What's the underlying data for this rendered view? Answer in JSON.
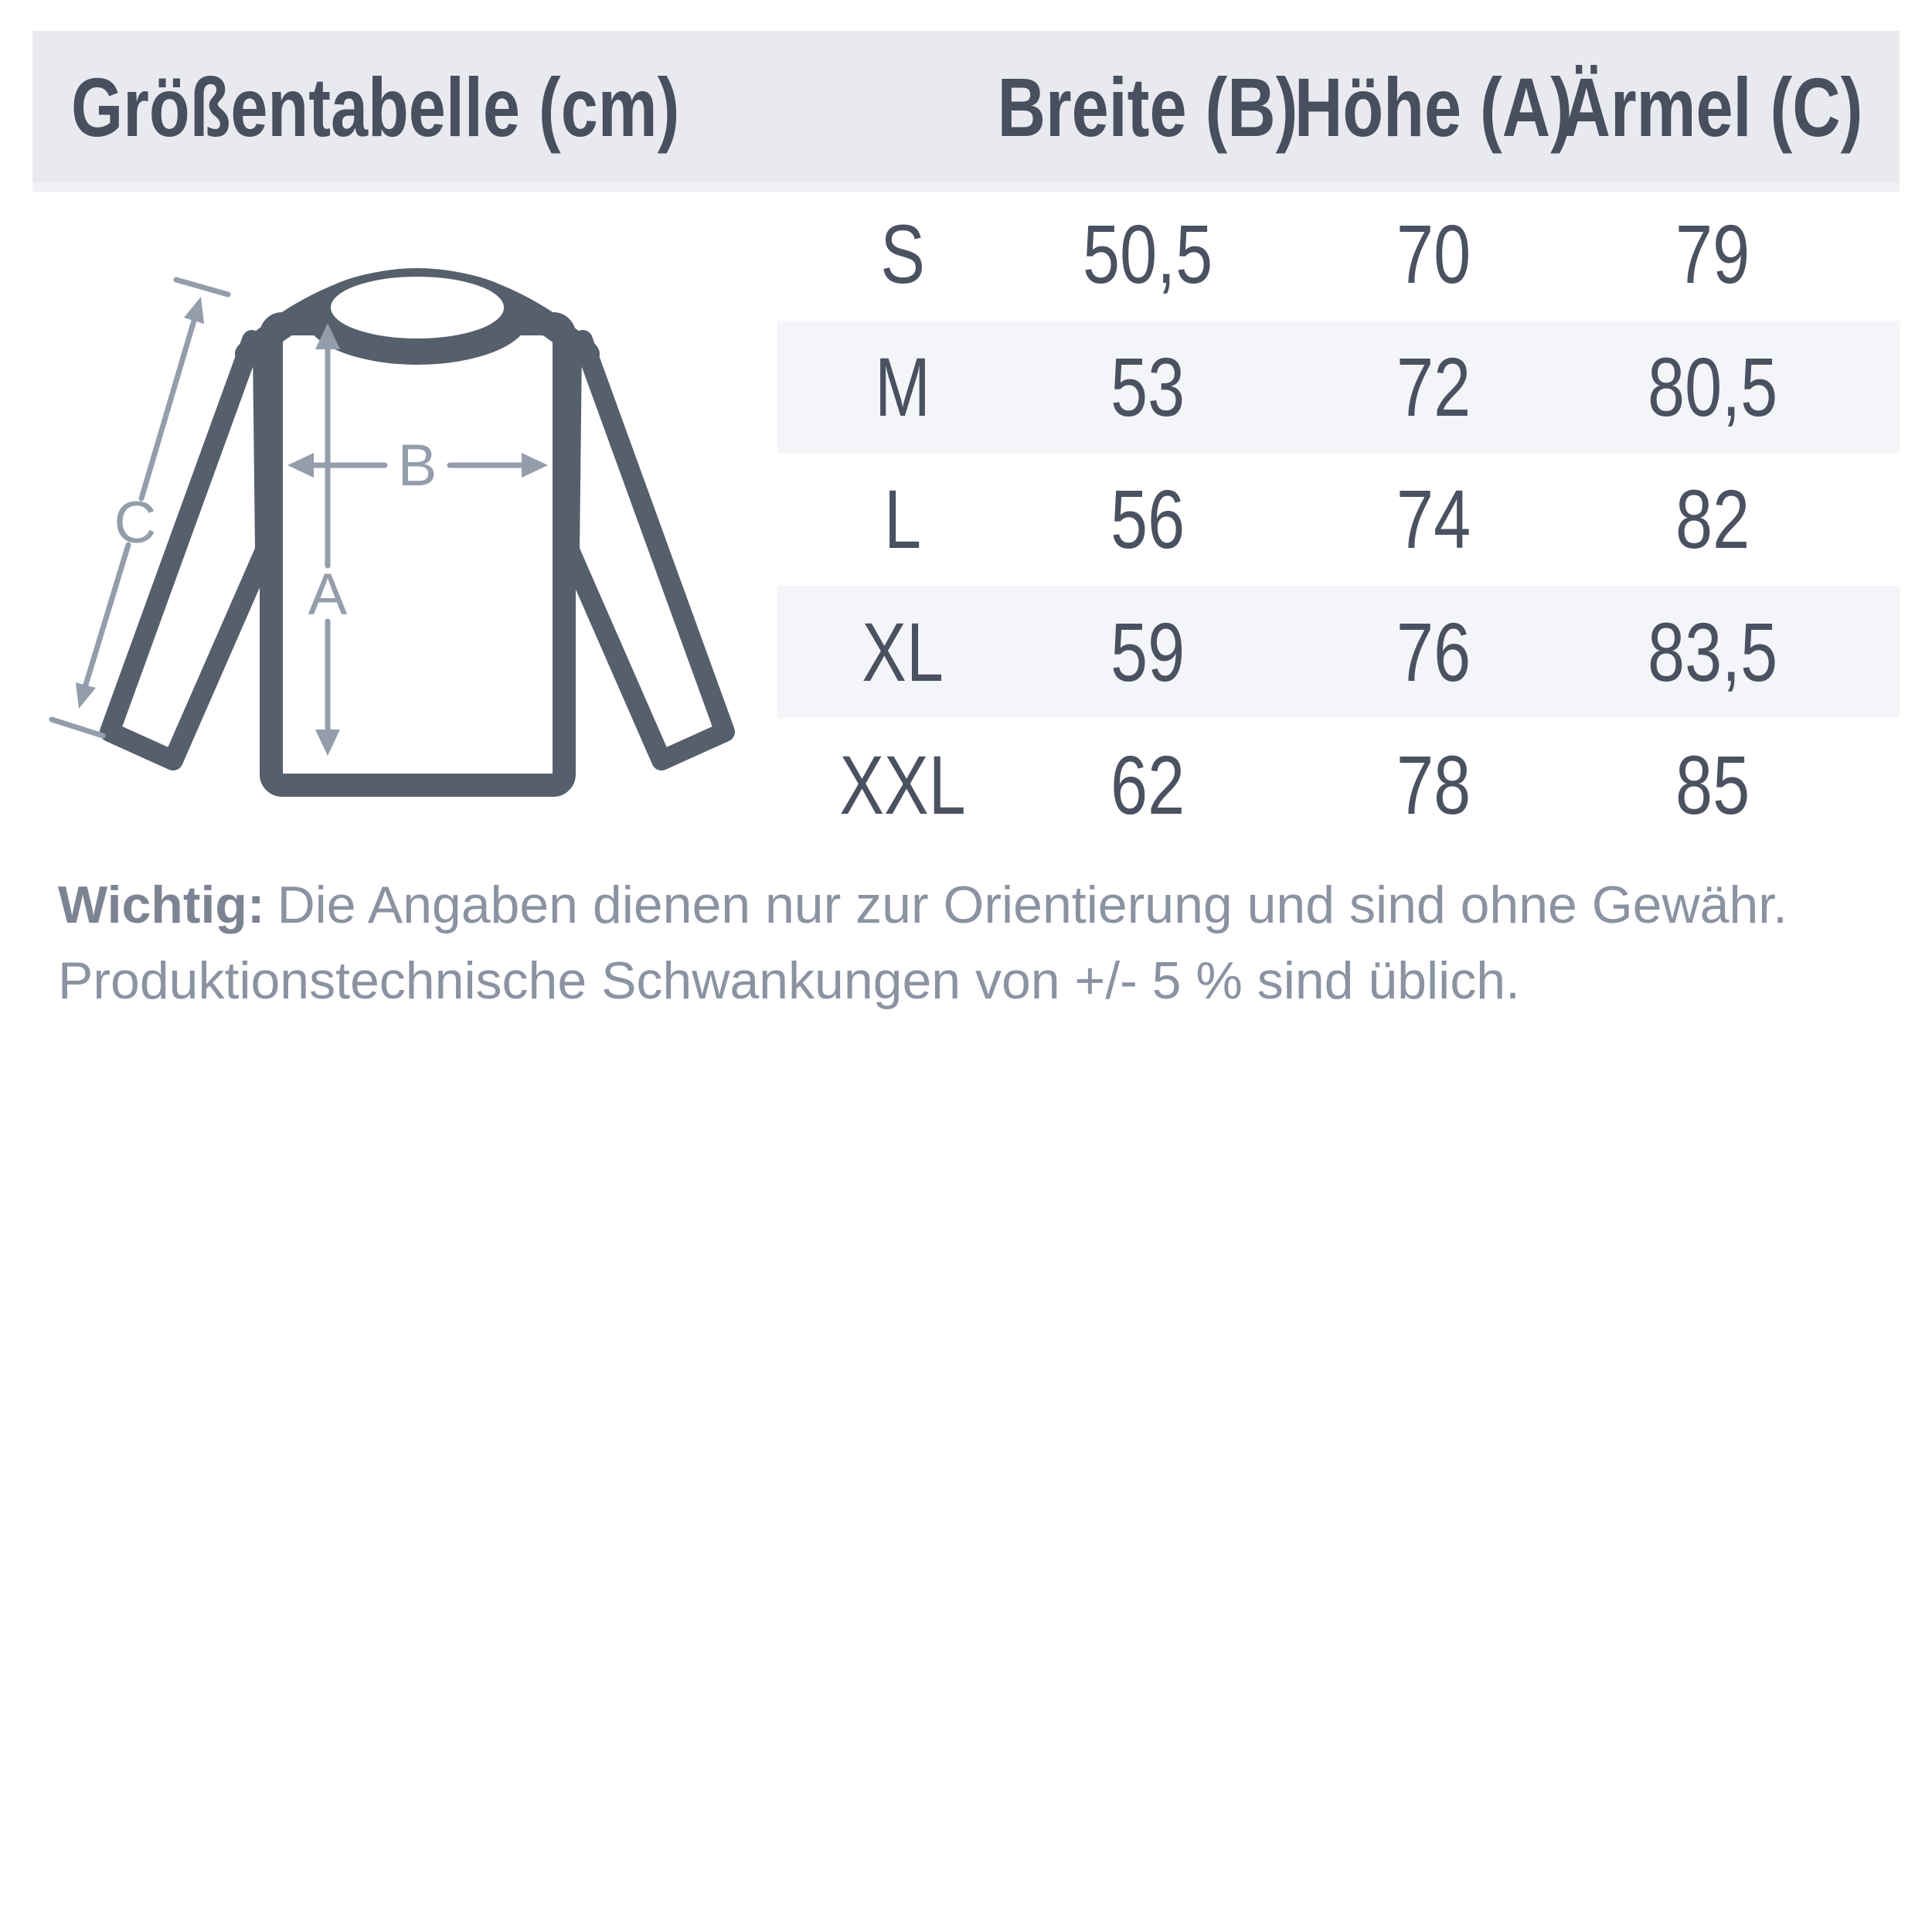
{
  "colors": {
    "header_bg": "#e9eaef",
    "header_bottom_edge": "#eff1f5",
    "row_stripe_bg": "#f4f5f8",
    "heading_text": "#48505f",
    "value_text": "#4a5261",
    "garment_outline": "#56606c",
    "arrow": "#949dac",
    "note_text": "#8b93a2",
    "note_bold_text": "#7c8493"
  },
  "size_chart": {
    "title": "Größentabelle (cm)",
    "columns": [
      "Breite (B)",
      "Höhe (A)",
      "Ärmel (C)"
    ],
    "rows": [
      {
        "size": "S",
        "breite": "50,5",
        "hoehe": "70",
        "aermel": "79"
      },
      {
        "size": "M",
        "breite": "53",
        "hoehe": "72",
        "aermel": "80,5"
      },
      {
        "size": "L",
        "breite": "56",
        "hoehe": "74",
        "aermel": "82"
      },
      {
        "size": "XL",
        "breite": "59",
        "hoehe": "76",
        "aermel": "83,5"
      },
      {
        "size": "XXL",
        "breite": "62",
        "hoehe": "78",
        "aermel": "85"
      }
    ]
  },
  "diagram": {
    "label_a": "A",
    "label_b": "B",
    "label_c": "C"
  },
  "note": {
    "bold": "Wichtig:",
    "line1": "Die Angaben dienen nur zur Orientierung und sind ohne Gewähr.",
    "line2": "Produktionstechnische Schwankungen von +/- 5 % sind üblich."
  },
  "chart_data": {
    "type": "table",
    "title": "Größentabelle (cm)",
    "unit": "cm",
    "categories": [
      "S",
      "M",
      "L",
      "XL",
      "XXL"
    ],
    "series": [
      {
        "name": "Breite (B)",
        "values": [
          50.5,
          53,
          56,
          59,
          62
        ]
      },
      {
        "name": "Höhe (A)",
        "values": [
          70,
          72,
          74,
          76,
          78
        ]
      },
      {
        "name": "Ärmel (C)",
        "values": [
          79,
          80.5,
          82,
          83.5,
          85
        ]
      }
    ],
    "layout": "size table with alternating striped rows, measurement diagram at left"
  }
}
